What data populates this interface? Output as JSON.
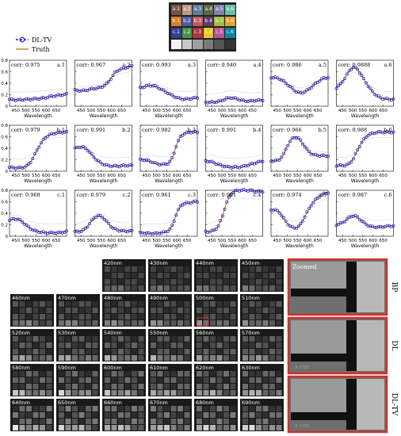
{
  "color_checker": {
    "rows": [
      [
        "a.1",
        "a.2",
        "a.3",
        "a.4",
        "a.5",
        "a.6"
      ],
      [
        "b.1",
        "b.2",
        "b.3",
        "b.4",
        "b.5",
        "b.6"
      ],
      [
        "c.1",
        "c.2",
        "c.3",
        "c.4",
        "c.5",
        "c.6"
      ],
      [
        "",
        "",
        "",
        "",
        "",
        ""
      ]
    ],
    "colors": [
      [
        "#735244",
        "#c29682",
        "#627a9d",
        "#576c43",
        "#8580b1",
        "#67bdaa"
      ],
      [
        "#d67e2c",
        "#505ba6",
        "#c15a63",
        "#5e3c6c",
        "#9dbc40",
        "#e0a32e"
      ],
      [
        "#383d96",
        "#469449",
        "#af363c",
        "#e7c71f",
        "#bb5695",
        "#0885a1"
      ],
      [
        "#f3f3f2",
        "#c8c8c8",
        "#a0a0a0",
        "#7a7a79",
        "#555555",
        "#343434"
      ]
    ]
  },
  "legend": {
    "dl_tv": "DL-TV",
    "truth": "Truth",
    "dl_color": "#1a1ad6",
    "truth_color": "#c87b1e"
  },
  "chart_data": {
    "type": "line",
    "x": [
      420,
      440,
      460,
      480,
      500,
      520,
      540,
      560,
      580,
      600,
      620,
      640,
      660,
      680,
      700
    ],
    "xlabel": "Wavelength",
    "xticks": [
      "450",
      "500",
      "550",
      "600",
      "650"
    ],
    "ylim": [
      0,
      0.8
    ],
    "yticks": [
      "0",
      "0.2",
      "0.4",
      "0.6",
      "0.8"
    ],
    "panels": [
      {
        "id": "a.1",
        "corr": "corr: 0.975",
        "values": [
          0.12,
          0.11,
          0.11,
          0.11,
          0.12,
          0.12,
          0.13,
          0.13,
          0.14,
          0.15,
          0.17,
          0.18,
          0.19,
          0.2,
          0.21
        ]
      },
      {
        "id": "a.2",
        "corr": "corr: 0.967",
        "values": [
          0.28,
          0.27,
          0.27,
          0.28,
          0.3,
          0.31,
          0.32,
          0.35,
          0.4,
          0.5,
          0.6,
          0.64,
          0.66,
          0.68,
          0.7
        ]
      },
      {
        "id": "a.3",
        "corr": "corr: 0.993",
        "values": [
          0.32,
          0.34,
          0.36,
          0.36,
          0.34,
          0.3,
          0.26,
          0.22,
          0.18,
          0.15,
          0.13,
          0.12,
          0.13,
          0.14,
          0.15
        ]
      },
      {
        "id": "a.4",
        "corr": "corr: 0.940",
        "values": [
          0.07,
          0.07,
          0.07,
          0.08,
          0.1,
          0.13,
          0.15,
          0.14,
          0.12,
          0.1,
          0.09,
          0.09,
          0.1,
          0.1,
          0.11
        ]
      },
      {
        "id": "a.5",
        "corr": "corr: 0.986",
        "values": [
          0.5,
          0.5,
          0.48,
          0.44,
          0.38,
          0.32,
          0.26,
          0.23,
          0.24,
          0.28,
          0.34,
          0.4,
          0.45,
          0.49,
          0.5
        ]
      },
      {
        "id": "a.6",
        "corr": "corr: 0.9888",
        "values": [
          0.32,
          0.38,
          0.48,
          0.6,
          0.68,
          0.66,
          0.56,
          0.44,
          0.33,
          0.24,
          0.18,
          0.14,
          0.13,
          0.12,
          0.12
        ]
      },
      {
        "id": "b.1",
        "corr": "corr: 0.979",
        "values": [
          0.07,
          0.06,
          0.06,
          0.06,
          0.08,
          0.14,
          0.26,
          0.4,
          0.52,
          0.6,
          0.64,
          0.66,
          0.67,
          0.68,
          0.68
        ]
      },
      {
        "id": "b.2",
        "corr": "corr: 0.991",
        "values": [
          0.4,
          0.42,
          0.42,
          0.38,
          0.3,
          0.22,
          0.16,
          0.12,
          0.1,
          0.09,
          0.09,
          0.09,
          0.1,
          0.1,
          0.1
        ]
      },
      {
        "id": "b.3",
        "corr": "corr: 0.982",
        "values": [
          0.2,
          0.2,
          0.18,
          0.16,
          0.13,
          0.12,
          0.12,
          0.14,
          0.25,
          0.48,
          0.62,
          0.66,
          0.68,
          0.68,
          0.68
        ]
      },
      {
        "id": "b.4",
        "corr": "corr: 0.991",
        "values": [
          0.18,
          0.17,
          0.15,
          0.12,
          0.1,
          0.08,
          0.07,
          0.07,
          0.07,
          0.08,
          0.1,
          0.12,
          0.14,
          0.16,
          0.18
        ]
      },
      {
        "id": "b.5",
        "corr": "corr: 0.966",
        "values": [
          0.18,
          0.18,
          0.2,
          0.28,
          0.44,
          0.56,
          0.6,
          0.56,
          0.46,
          0.36,
          0.3,
          0.28,
          0.27,
          0.27,
          0.27
        ]
      },
      {
        "id": "b.6",
        "corr": "corr: 0.988",
        "values": [
          0.1,
          0.1,
          0.1,
          0.12,
          0.2,
          0.34,
          0.48,
          0.58,
          0.64,
          0.66,
          0.68,
          0.68,
          0.68,
          0.68,
          0.68
        ]
      },
      {
        "id": "c.1",
        "corr": "corr: 0.968",
        "values": [
          0.28,
          0.3,
          0.3,
          0.26,
          0.2,
          0.14,
          0.1,
          0.08,
          0.07,
          0.06,
          0.06,
          0.06,
          0.06,
          0.07,
          0.08
        ]
      },
      {
        "id": "c.2",
        "corr": "corr: 0.979",
        "values": [
          0.08,
          0.08,
          0.1,
          0.16,
          0.26,
          0.34,
          0.36,
          0.32,
          0.24,
          0.16,
          0.12,
          0.1,
          0.09,
          0.09,
          0.09
        ]
      },
      {
        "id": "c.3",
        "corr": "corr: 0.961",
        "values": [
          0.06,
          0.06,
          0.05,
          0.05,
          0.05,
          0.06,
          0.07,
          0.1,
          0.2,
          0.42,
          0.54,
          0.58,
          0.58,
          0.6,
          0.6
        ]
      },
      {
        "id": "c.4",
        "corr": "corr: 0.991",
        "values": [
          0.08,
          0.08,
          0.1,
          0.16,
          0.32,
          0.56,
          0.72,
          0.78,
          0.8,
          0.8,
          0.8,
          0.8,
          0.78,
          0.78,
          0.78
        ]
      },
      {
        "id": "c.5",
        "corr": "corr: 0.974",
        "values": [
          0.46,
          0.46,
          0.42,
          0.32,
          0.22,
          0.16,
          0.14,
          0.18,
          0.3,
          0.44,
          0.56,
          0.64,
          0.7,
          0.74,
          0.76
        ]
      },
      {
        "id": "c.6",
        "corr": "corr: 0.987",
        "values": [
          0.2,
          0.22,
          0.26,
          0.32,
          0.36,
          0.34,
          0.28,
          0.22,
          0.18,
          0.16,
          0.16,
          0.16,
          0.17,
          0.18,
          0.18
        ]
      }
    ]
  },
  "bands": {
    "row1": [
      "420nm",
      "430nm",
      "440nm",
      "450nm"
    ],
    "row2": [
      "460nm",
      "470nm",
      "480nm",
      "490nm",
      "500nm",
      "510nm"
    ],
    "row3": [
      "520nm",
      "530nm",
      "540nm",
      "550nm",
      "560nm",
      "570nm"
    ],
    "row4": [
      "580nm",
      "590nm",
      "600nm",
      "610nm",
      "620nm",
      "630nm"
    ],
    "row5": [
      "640nm",
      "650nm",
      "660nm",
      "670nm",
      "680nm",
      "690nm"
    ]
  },
  "zoom": {
    "title": "Zoomed",
    "labels": [
      "BP",
      "DL",
      "DL-TV"
    ],
    "brand": "x·rite",
    "frame_color": "#d0302a"
  }
}
